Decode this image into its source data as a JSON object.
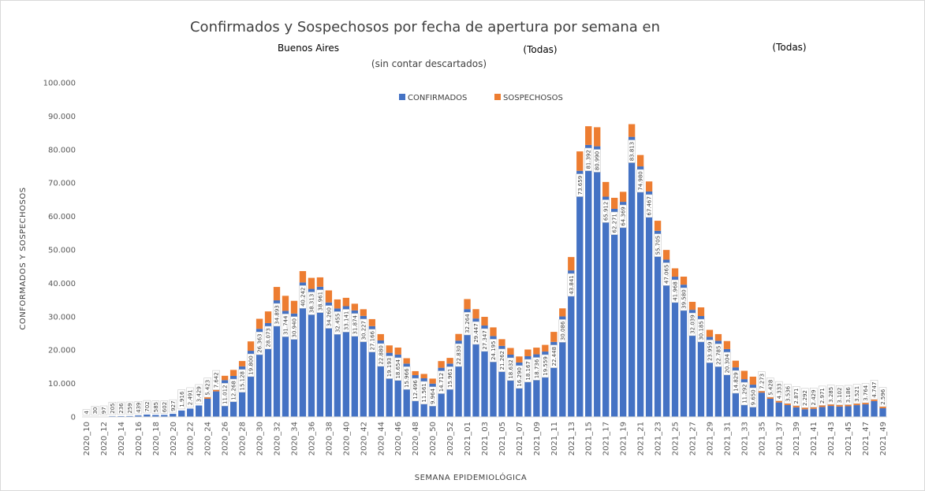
{
  "chart_data": {
    "type": "bar",
    "stacked": true,
    "title": "Confirmados y Sospechosos por fecha de apertura por semana en",
    "filters": [
      "Buenos Aires",
      "(Todas)",
      "(Todas)"
    ],
    "subtitle": "(sin contar descartados)",
    "xlabel": "SEMANA EPIDEMIOLÓGICA",
    "ylabel": "CONFORMADOS Y SOSPECHOSOS",
    "ylim": [
      0,
      100000
    ],
    "yticks": [
      0,
      10000,
      20000,
      30000,
      40000,
      50000,
      60000,
      70000,
      80000,
      90000,
      100000
    ],
    "ytick_labels": [
      "0",
      "10.000",
      "20.000",
      "30.000",
      "40.000",
      "50.000",
      "60.000",
      "70.000",
      "80.000",
      "90.000",
      "100.000"
    ],
    "grid": false,
    "legend_position": "top",
    "colors": {
      "confirmados": "#4472c4",
      "sospechosos": "#ed7d31"
    },
    "categories": [
      "2020_10",
      "2020_11",
      "2020_12",
      "2020_13",
      "2020_14",
      "2020_15",
      "2020_16",
      "2020_17",
      "2020_18",
      "2020_19",
      "2020_20",
      "2020_21",
      "2020_22",
      "2020_23",
      "2020_24",
      "2020_25",
      "2020_26",
      "2020_27",
      "2020_28",
      "2020_29",
      "2020_30",
      "2020_31",
      "2020_32",
      "2020_33",
      "2020_34",
      "2020_35",
      "2020_36",
      "2020_37",
      "2020_38",
      "2020_39",
      "2020_40",
      "2020_41",
      "2020_42",
      "2020_43",
      "2020_44",
      "2020_45",
      "2020_46",
      "2020_47",
      "2020_48",
      "2020_49",
      "2020_50",
      "2020_51",
      "2020_52",
      "2020_53",
      "2021_01",
      "2021_02",
      "2021_03",
      "2021_04",
      "2021_05",
      "2021_06",
      "2021_07",
      "2021_08",
      "2021_09",
      "2021_10",
      "2021_11",
      "2021_12",
      "2021_13",
      "2021_14",
      "2021_15",
      "2021_16",
      "2021_17",
      "2021_18",
      "2021_19",
      "2021_20",
      "2021_21",
      "2021_22",
      "2021_23",
      "2021_24",
      "2021_25",
      "2021_26",
      "2021_27",
      "2021_28",
      "2021_29",
      "2021_30",
      "2021_31",
      "2021_32",
      "2021_33",
      "2021_34",
      "2021_35",
      "2021_36",
      "2021_37",
      "2021_38",
      "2021_39",
      "2021_40",
      "2021_41",
      "2021_42",
      "2021_43",
      "2021_44",
      "2021_45",
      "2021_46",
      "2021_47",
      "2021_48",
      "2021_49"
    ],
    "category_labels": [
      "2020_10",
      "",
      "2020_12",
      "",
      "2020_14",
      "",
      "2020_16",
      "",
      "2020_18",
      "",
      "2020_20",
      "",
      "2020_22",
      "",
      "2020_24",
      "",
      "2020_26",
      "",
      "2020_28",
      "",
      "2020_30",
      "",
      "2020_32",
      "",
      "2020_34",
      "",
      "2020_36",
      "",
      "2020_38",
      "",
      "2020_40",
      "",
      "2020_42",
      "",
      "2020_44",
      "",
      "2020_46",
      "",
      "2020_48",
      "",
      "2020_50",
      "",
      "2020_52",
      "",
      "2021_01",
      "",
      "2021_03",
      "",
      "2021_05",
      "",
      "2021_07",
      "",
      "2021_09",
      "",
      "2021_11",
      "",
      "2021_13",
      "",
      "2021_15",
      "",
      "2021_17",
      "",
      "2021_19",
      "",
      "2021_21",
      "",
      "2021_23",
      "",
      "2021_25",
      "",
      "2021_27",
      "",
      "2021_29",
      "",
      "2021_31",
      "",
      "2021_33",
      "",
      "2021_35",
      "",
      "2021_37",
      "",
      "2021_39",
      "",
      "2021_41",
      "",
      "2021_43",
      "",
      "2021_45",
      "",
      "2021_47",
      "",
      "2021_49"
    ],
    "series": [
      {
        "name": "CONFIRMADOS",
        "values": [
          4,
          30,
          97,
          205,
          236,
          259,
          439,
          702,
          585,
          602,
          927,
          1916,
          2491,
          3429,
          5423,
          7642,
          11012,
          12268,
          15128,
          19800,
          26363,
          28073,
          34893,
          31744,
          30940,
          40242,
          38313,
          38961,
          34260,
          32455,
          33141,
          31874,
          30227,
          27166,
          22880,
          19193,
          18654,
          15966,
          12496,
          11561,
          9964,
          14712,
          15961,
          22830,
          32264,
          29447,
          27347,
          24195,
          21262,
          18632,
          16290,
          18167,
          18736,
          19559,
          22448,
          30086,
          43841,
          73659,
          81392,
          80990,
          65912,
          62271,
          64369,
          83813,
          74980,
          67467,
          55705,
          47065,
          41968,
          39580,
          32039,
          30185,
          23959,
          22785,
          20304,
          14829,
          11292,
          9650,
          7273,
          5428,
          4333,
          3536,
          2871,
          2292,
          2429,
          2971,
          3285,
          3102,
          3186,
          3521,
          3764,
          4747,
          2596
        ]
      },
      {
        "name": "SOSPECHOSOS",
        "values": [
          0,
          0,
          0,
          0,
          0,
          0,
          0,
          0,
          0,
          0,
          0,
          0,
          0,
          0,
          500,
          600,
          1300,
          1800,
          1600,
          2800,
          3000,
          3500,
          4000,
          4500,
          3800,
          3400,
          3300,
          2800,
          3600,
          2700,
          2500,
          2000,
          2000,
          2100,
          1900,
          2200,
          2100,
          1600,
          1200,
          1300,
          1500,
          2000,
          1700,
          2000,
          3000,
          2800,
          2600,
          2600,
          2000,
          2000,
          1800,
          2000,
          2000,
          2000,
          3000,
          2400,
          4000,
          5800,
          5600,
          5700,
          4400,
          3300,
          3000,
          3800,
          3400,
          3000,
          3000,
          2900,
          2500,
          2400,
          2400,
          2600,
          2100,
          2000,
          2400,
          2000,
          2500,
          2400,
          2500,
          1600,
          1800,
          1600,
          1000,
          1000,
          1100,
          1300,
          1600,
          1700,
          2000,
          2100,
          2200,
          2100,
          3400
        ]
      }
    ]
  }
}
